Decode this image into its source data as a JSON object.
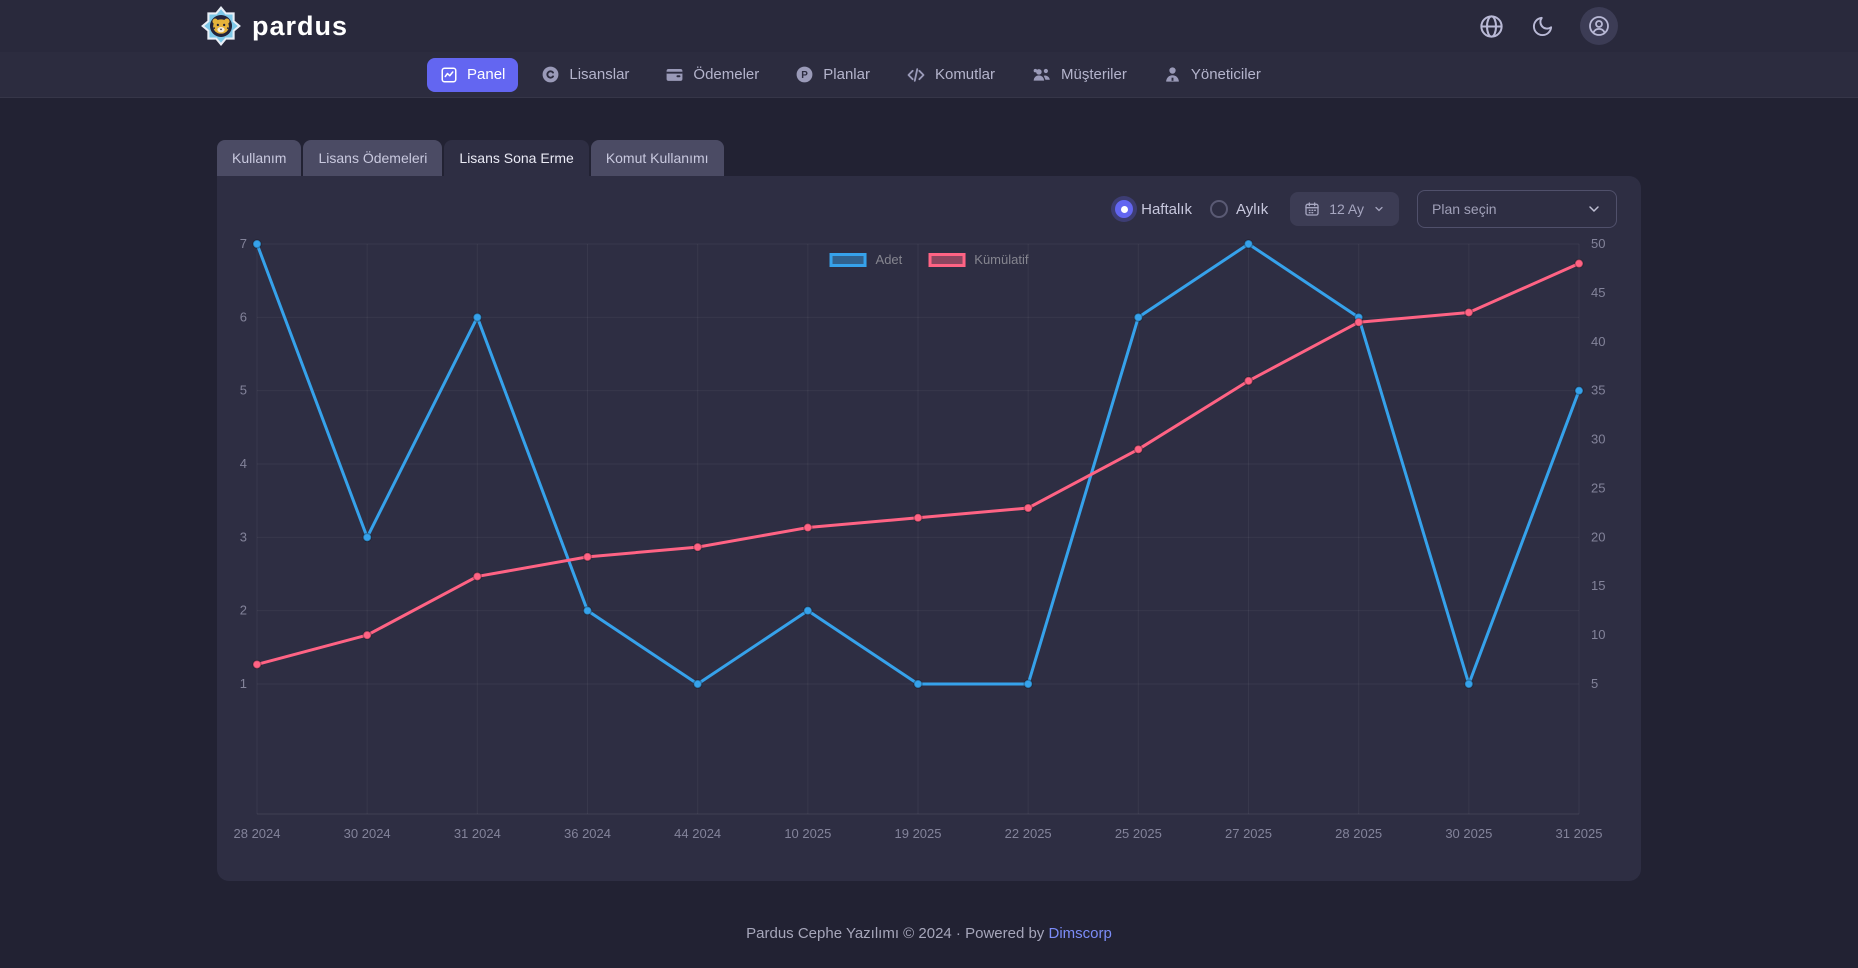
{
  "brand": {
    "name": "pardus"
  },
  "header": {
    "icons": [
      "globe-icon",
      "moon-icon",
      "avatar-icon"
    ]
  },
  "nav": {
    "items": [
      {
        "label": "Panel",
        "icon": "chart-line-icon",
        "active": true
      },
      {
        "label": "Lisanslar",
        "icon": "copyright-icon",
        "active": false
      },
      {
        "label": "Ödemeler",
        "icon": "wallet-icon",
        "active": false
      },
      {
        "label": "Planlar",
        "icon": "plan-circle-icon",
        "active": false
      },
      {
        "label": "Komutlar",
        "icon": "code-icon",
        "active": false
      },
      {
        "label": "Müşteriler",
        "icon": "users-icon",
        "active": false
      },
      {
        "label": "Yöneticiler",
        "icon": "admin-icon",
        "active": false
      }
    ]
  },
  "tabs": {
    "items": [
      {
        "label": "Kullanım",
        "active": false
      },
      {
        "label": "Lisans Ödemeleri",
        "active": false
      },
      {
        "label": "Lisans Sona Erme",
        "active": true
      },
      {
        "label": "Komut Kullanımı",
        "active": false
      }
    ]
  },
  "controls": {
    "frequency": {
      "options": [
        {
          "label": "Haftalık",
          "selected": true
        },
        {
          "label": "Aylık",
          "selected": false
        }
      ]
    },
    "range_button": {
      "label": "12 Ay",
      "icon": "calendar-icon"
    },
    "plan_select": {
      "placeholder": "Plan seçin"
    }
  },
  "chart_data": {
    "type": "line",
    "categories": [
      "28 2024",
      "30 2024",
      "31 2024",
      "36 2024",
      "44 2024",
      "10 2025",
      "19 2025",
      "22 2025",
      "25 2025",
      "27 2025",
      "28 2025",
      "30 2025",
      "31 2025"
    ],
    "series": [
      {
        "name": "Adet",
        "color": "#36a2eb",
        "axis": "left",
        "values": [
          7,
          3,
          6,
          2,
          1,
          2,
          1,
          1,
          6,
          7,
          6,
          1,
          5
        ]
      },
      {
        "name": "Kümülatif",
        "color": "#ff6384",
        "axis": "right",
        "values": [
          7,
          10,
          16,
          18,
          19,
          21,
          22,
          23,
          29,
          36,
          42,
          43,
          48
        ]
      }
    ],
    "left_axis": {
      "min": 1,
      "max": 7,
      "ticks": [
        1,
        2,
        3,
        4,
        5,
        6,
        7
      ]
    },
    "right_axis": {
      "min": 5,
      "max": 50,
      "ticks": [
        5,
        10,
        15,
        20,
        25,
        30,
        35,
        40,
        45,
        50
      ]
    },
    "legend_position": "top-center",
    "grid": true,
    "background": "#2e2e43"
  },
  "colors": {
    "accent": "#6366f1",
    "series_blue": "#36a2eb",
    "series_pink": "#ff6384",
    "card_bg": "#2e2e43",
    "page_bg": "#222233"
  },
  "footer": {
    "text": "Pardus Cephe Yazılımı © 2024 · Powered by",
    "link_label": "Dimscorp"
  }
}
